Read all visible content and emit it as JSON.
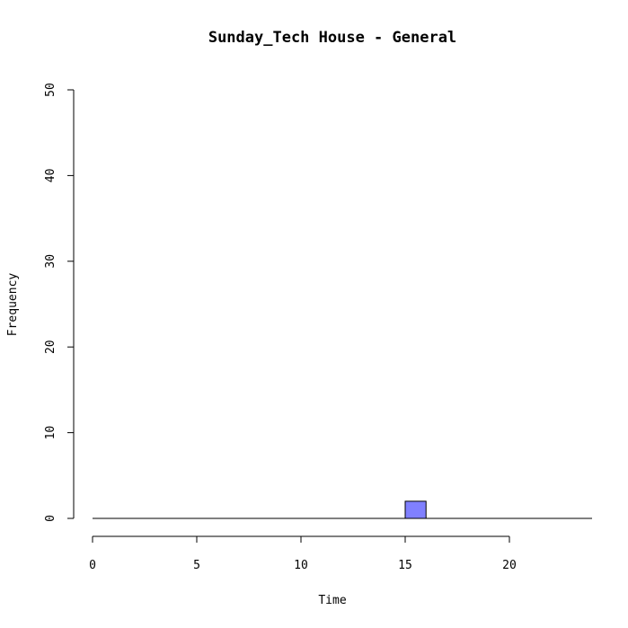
{
  "chart_data": {
    "type": "bar",
    "title": "Sunday_Tech House - General",
    "xlabel": "Time",
    "ylabel": "Frequency",
    "xlim": [
      0,
      24
    ],
    "ylim": [
      0,
      50
    ],
    "x_ticks": [
      0,
      5,
      10,
      15,
      20
    ],
    "y_ticks": [
      0,
      10,
      20,
      30,
      40,
      50
    ],
    "bin_width": 1,
    "bins": [
      {
        "x": 0,
        "count": 0
      },
      {
        "x": 1,
        "count": 0
      },
      {
        "x": 2,
        "count": 0
      },
      {
        "x": 3,
        "count": 0
      },
      {
        "x": 4,
        "count": 0
      },
      {
        "x": 5,
        "count": 0
      },
      {
        "x": 6,
        "count": 0
      },
      {
        "x": 7,
        "count": 0
      },
      {
        "x": 8,
        "count": 0
      },
      {
        "x": 9,
        "count": 0
      },
      {
        "x": 10,
        "count": 0
      },
      {
        "x": 11,
        "count": 0
      },
      {
        "x": 12,
        "count": 0
      },
      {
        "x": 13,
        "count": 0
      },
      {
        "x": 14,
        "count": 0
      },
      {
        "x": 15,
        "count": 2
      },
      {
        "x": 16,
        "count": 0
      },
      {
        "x": 17,
        "count": 0
      },
      {
        "x": 18,
        "count": 0
      },
      {
        "x": 19,
        "count": 0
      },
      {
        "x": 20,
        "count": 0
      },
      {
        "x": 21,
        "count": 0
      },
      {
        "x": 22,
        "count": 0
      },
      {
        "x": 23,
        "count": 0
      }
    ],
    "bar_color": "#8080ff",
    "grid": false
  }
}
